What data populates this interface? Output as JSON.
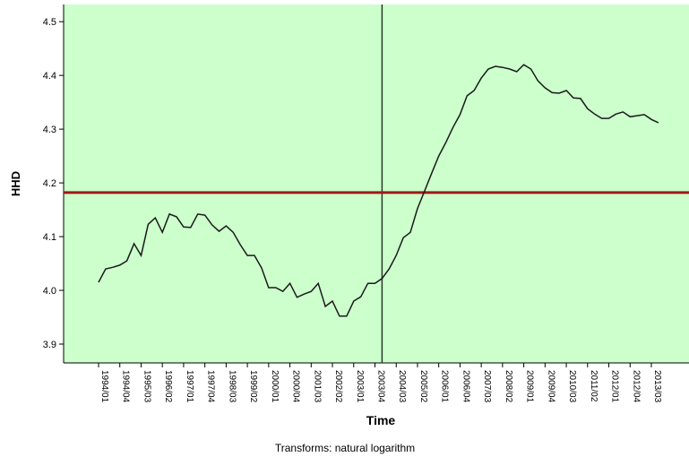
{
  "chart_data": {
    "type": "line",
    "y_label": "HHD",
    "x_label": "Time",
    "footnote": "Transforms: natural logarithm",
    "background": "#ccffcc",
    "line_color": "#1a1a1a",
    "reference_color": "#a01818",
    "x_reference": 40,
    "y_reference": 4.182,
    "categories": [
      "1994/01",
      null,
      null,
      "1994/04",
      null,
      null,
      "1995/03",
      null,
      null,
      "1996/02",
      null,
      null,
      "1997/01",
      null,
      null,
      "1997/04",
      null,
      null,
      "1998/03",
      null,
      null,
      "1999/02",
      null,
      null,
      "2000/01",
      null,
      null,
      "2000/04",
      null,
      null,
      "2001/03",
      null,
      null,
      "2002/02",
      null,
      null,
      "2003/01",
      null,
      null,
      "2003/04",
      null,
      null,
      "2004/03",
      null,
      null,
      "2005/02",
      null,
      null,
      "2006/01",
      null,
      null,
      "2006/04",
      null,
      null,
      "2007/03",
      null,
      null,
      "2008/02",
      null,
      null,
      "2009/01",
      null,
      null,
      "2009/04",
      null,
      null,
      "2010/03",
      null,
      null,
      "2011/02",
      null,
      null,
      "2012/01",
      null,
      null,
      "2012/04",
      null,
      null,
      "2013/03",
      null
    ],
    "values": [
      4.015,
      4.04,
      4.043,
      4.047,
      4.055,
      4.087,
      4.065,
      4.123,
      4.135,
      4.108,
      4.142,
      4.137,
      4.118,
      4.117,
      4.142,
      4.14,
      4.122,
      4.11,
      4.12,
      4.108,
      4.085,
      4.065,
      4.065,
      4.042,
      4.005,
      4.005,
      3.998,
      4.013,
      3.987,
      3.993,
      3.998,
      4.013,
      3.97,
      3.98,
      3.952,
      3.952,
      3.98,
      3.988,
      4.013,
      4.013,
      4.022,
      4.04,
      4.065,
      4.098,
      4.108,
      4.152,
      4.185,
      4.218,
      4.25,
      4.275,
      4.303,
      4.327,
      4.362,
      4.372,
      4.395,
      4.412,
      4.417,
      4.415,
      4.412,
      4.407,
      4.42,
      4.412,
      4.39,
      4.377,
      4.368,
      4.367,
      4.372,
      4.358,
      4.357,
      4.338,
      4.328,
      4.32,
      4.32,
      4.328,
      4.332,
      4.323,
      4.325,
      4.327,
      4.318,
      4.312
    ],
    "ylim": [
      3.865,
      4.532
    ],
    "yticks": [
      3.9,
      {
        "value": 4,
        "label": "4.0"
      },
      4.1,
      4.2,
      4.3,
      4.4,
      4.5
    ]
  }
}
